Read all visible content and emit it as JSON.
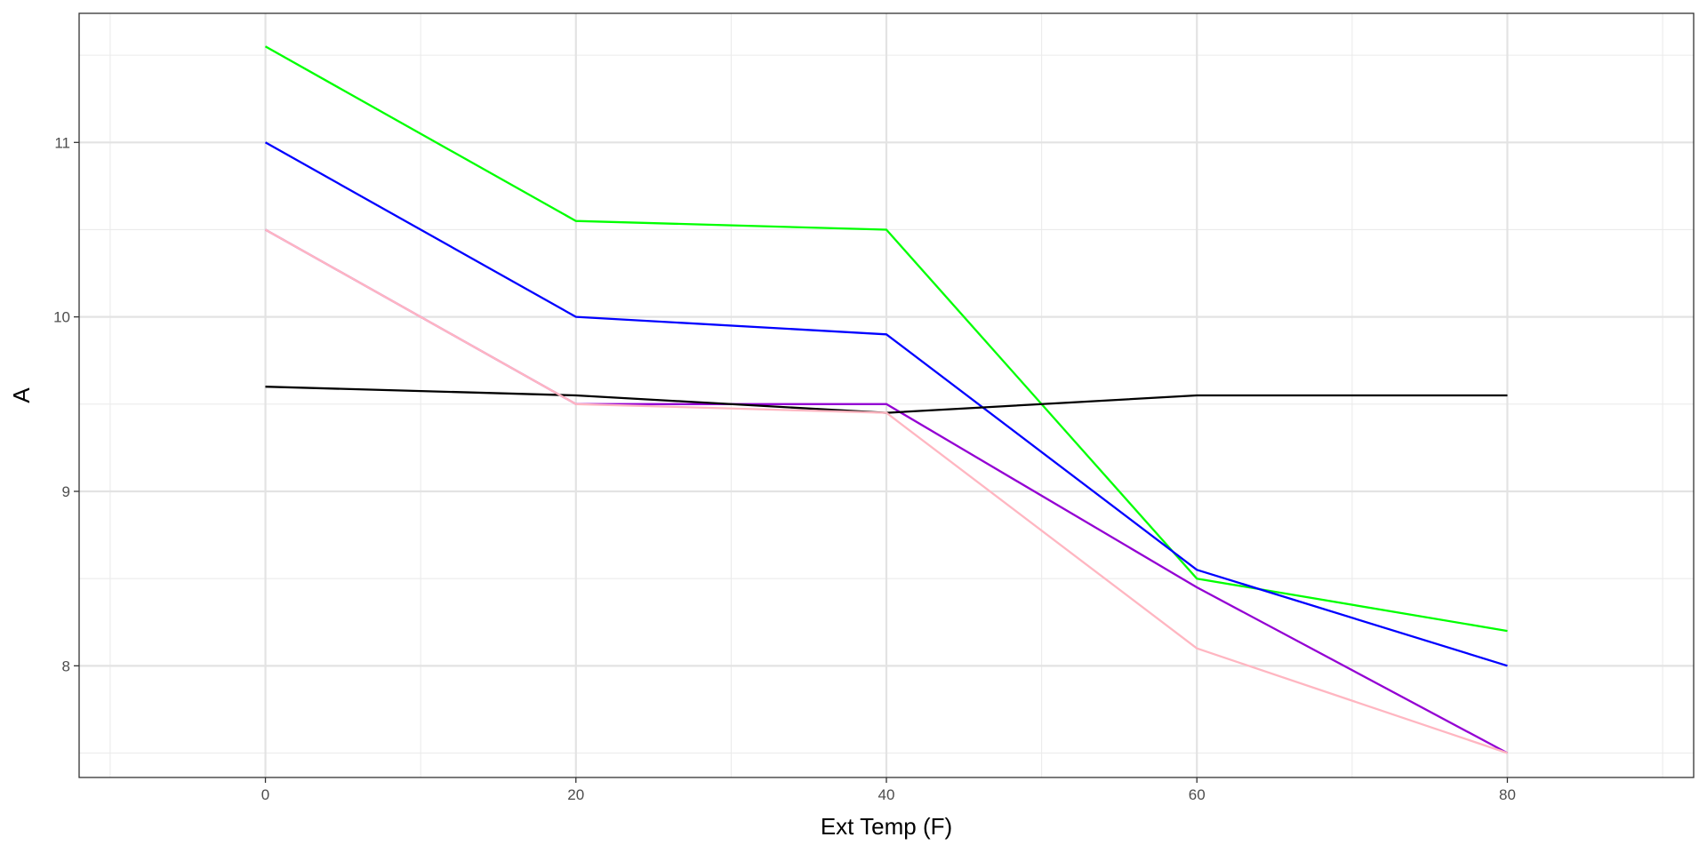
{
  "chart_data": {
    "type": "line",
    "title": "",
    "xlabel": "Ext Temp (F)",
    "ylabel": "A",
    "xlim": [
      -12,
      92
    ],
    "ylim": [
      7.36,
      11.74
    ],
    "x_ticks": [
      0,
      20,
      40,
      60,
      80
    ],
    "y_ticks": [
      8,
      9,
      10,
      11
    ],
    "grid": true,
    "legend": "none",
    "x": [
      0,
      20,
      40,
      60,
      80
    ],
    "series": [
      {
        "color": "#00ff00",
        "values": [
          11.55,
          10.55,
          10.5,
          8.5,
          8.2
        ]
      },
      {
        "color": "#0000ff",
        "values": [
          11.0,
          10.0,
          9.9,
          8.55,
          8.0
        ]
      },
      {
        "color": "#9400d3",
        "values": [
          10.5,
          9.5,
          9.5,
          8.45,
          7.5
        ]
      },
      {
        "color": "#000000",
        "values": [
          9.6,
          9.55,
          9.45,
          9.55,
          9.55
        ]
      },
      {
        "color": "#ffb6c1",
        "values": [
          10.5,
          9.5,
          9.45,
          8.1,
          7.5
        ]
      }
    ]
  }
}
